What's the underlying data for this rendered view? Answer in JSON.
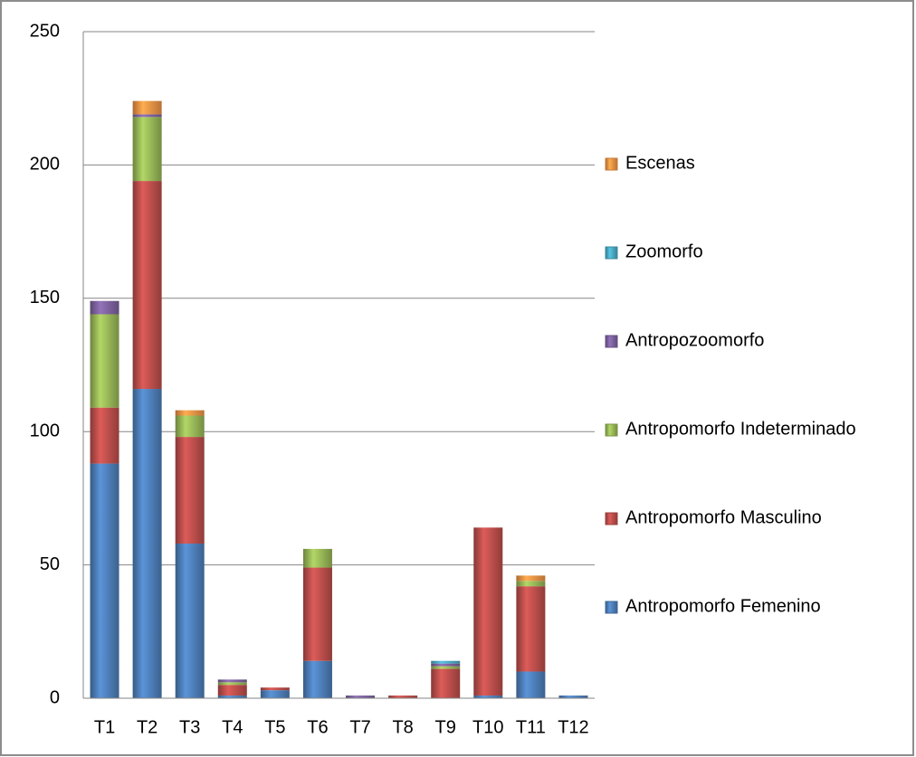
{
  "chart_data": {
    "type": "bar",
    "stacked": true,
    "categories": [
      "T1",
      "T2",
      "T3",
      "T4",
      "T5",
      "T6",
      "T7",
      "T8",
      "T9",
      "T10",
      "T11",
      "T12"
    ],
    "series": [
      {
        "name": "Antropomorfo Femenino",
        "color": "#4f81bd",
        "values": [
          88,
          116,
          58,
          1,
          3,
          14,
          0,
          0,
          0,
          1,
          10,
          1
        ]
      },
      {
        "name": "Antropomorfo Masculino",
        "color": "#c0504d",
        "values": [
          21,
          78,
          40,
          4,
          1,
          35,
          0,
          1,
          11,
          63,
          32,
          0
        ]
      },
      {
        "name": "Antropomorfo Indeterminado",
        "color": "#9bbb59",
        "values": [
          35,
          24,
          8,
          1,
          0,
          7,
          0,
          0,
          1,
          0,
          2,
          0
        ]
      },
      {
        "name": "Antropozoomorfo",
        "color": "#8064a2",
        "values": [
          5,
          1,
          0,
          1,
          0,
          0,
          1,
          0,
          1,
          0,
          0,
          0
        ]
      },
      {
        "name": "Zoomorfo",
        "color": "#4bacc6",
        "values": [
          0,
          0,
          0,
          0,
          0,
          0,
          0,
          0,
          1,
          0,
          0,
          0
        ]
      },
      {
        "name": "Escenas",
        "color": "#f79646",
        "values": [
          0,
          5,
          2,
          0,
          0,
          0,
          0,
          0,
          0,
          0,
          2,
          0
        ]
      }
    ],
    "ylim": [
      0,
      250
    ],
    "yticks": [
      0,
      50,
      100,
      150,
      200,
      250
    ],
    "grid": true,
    "legend": "right"
  }
}
